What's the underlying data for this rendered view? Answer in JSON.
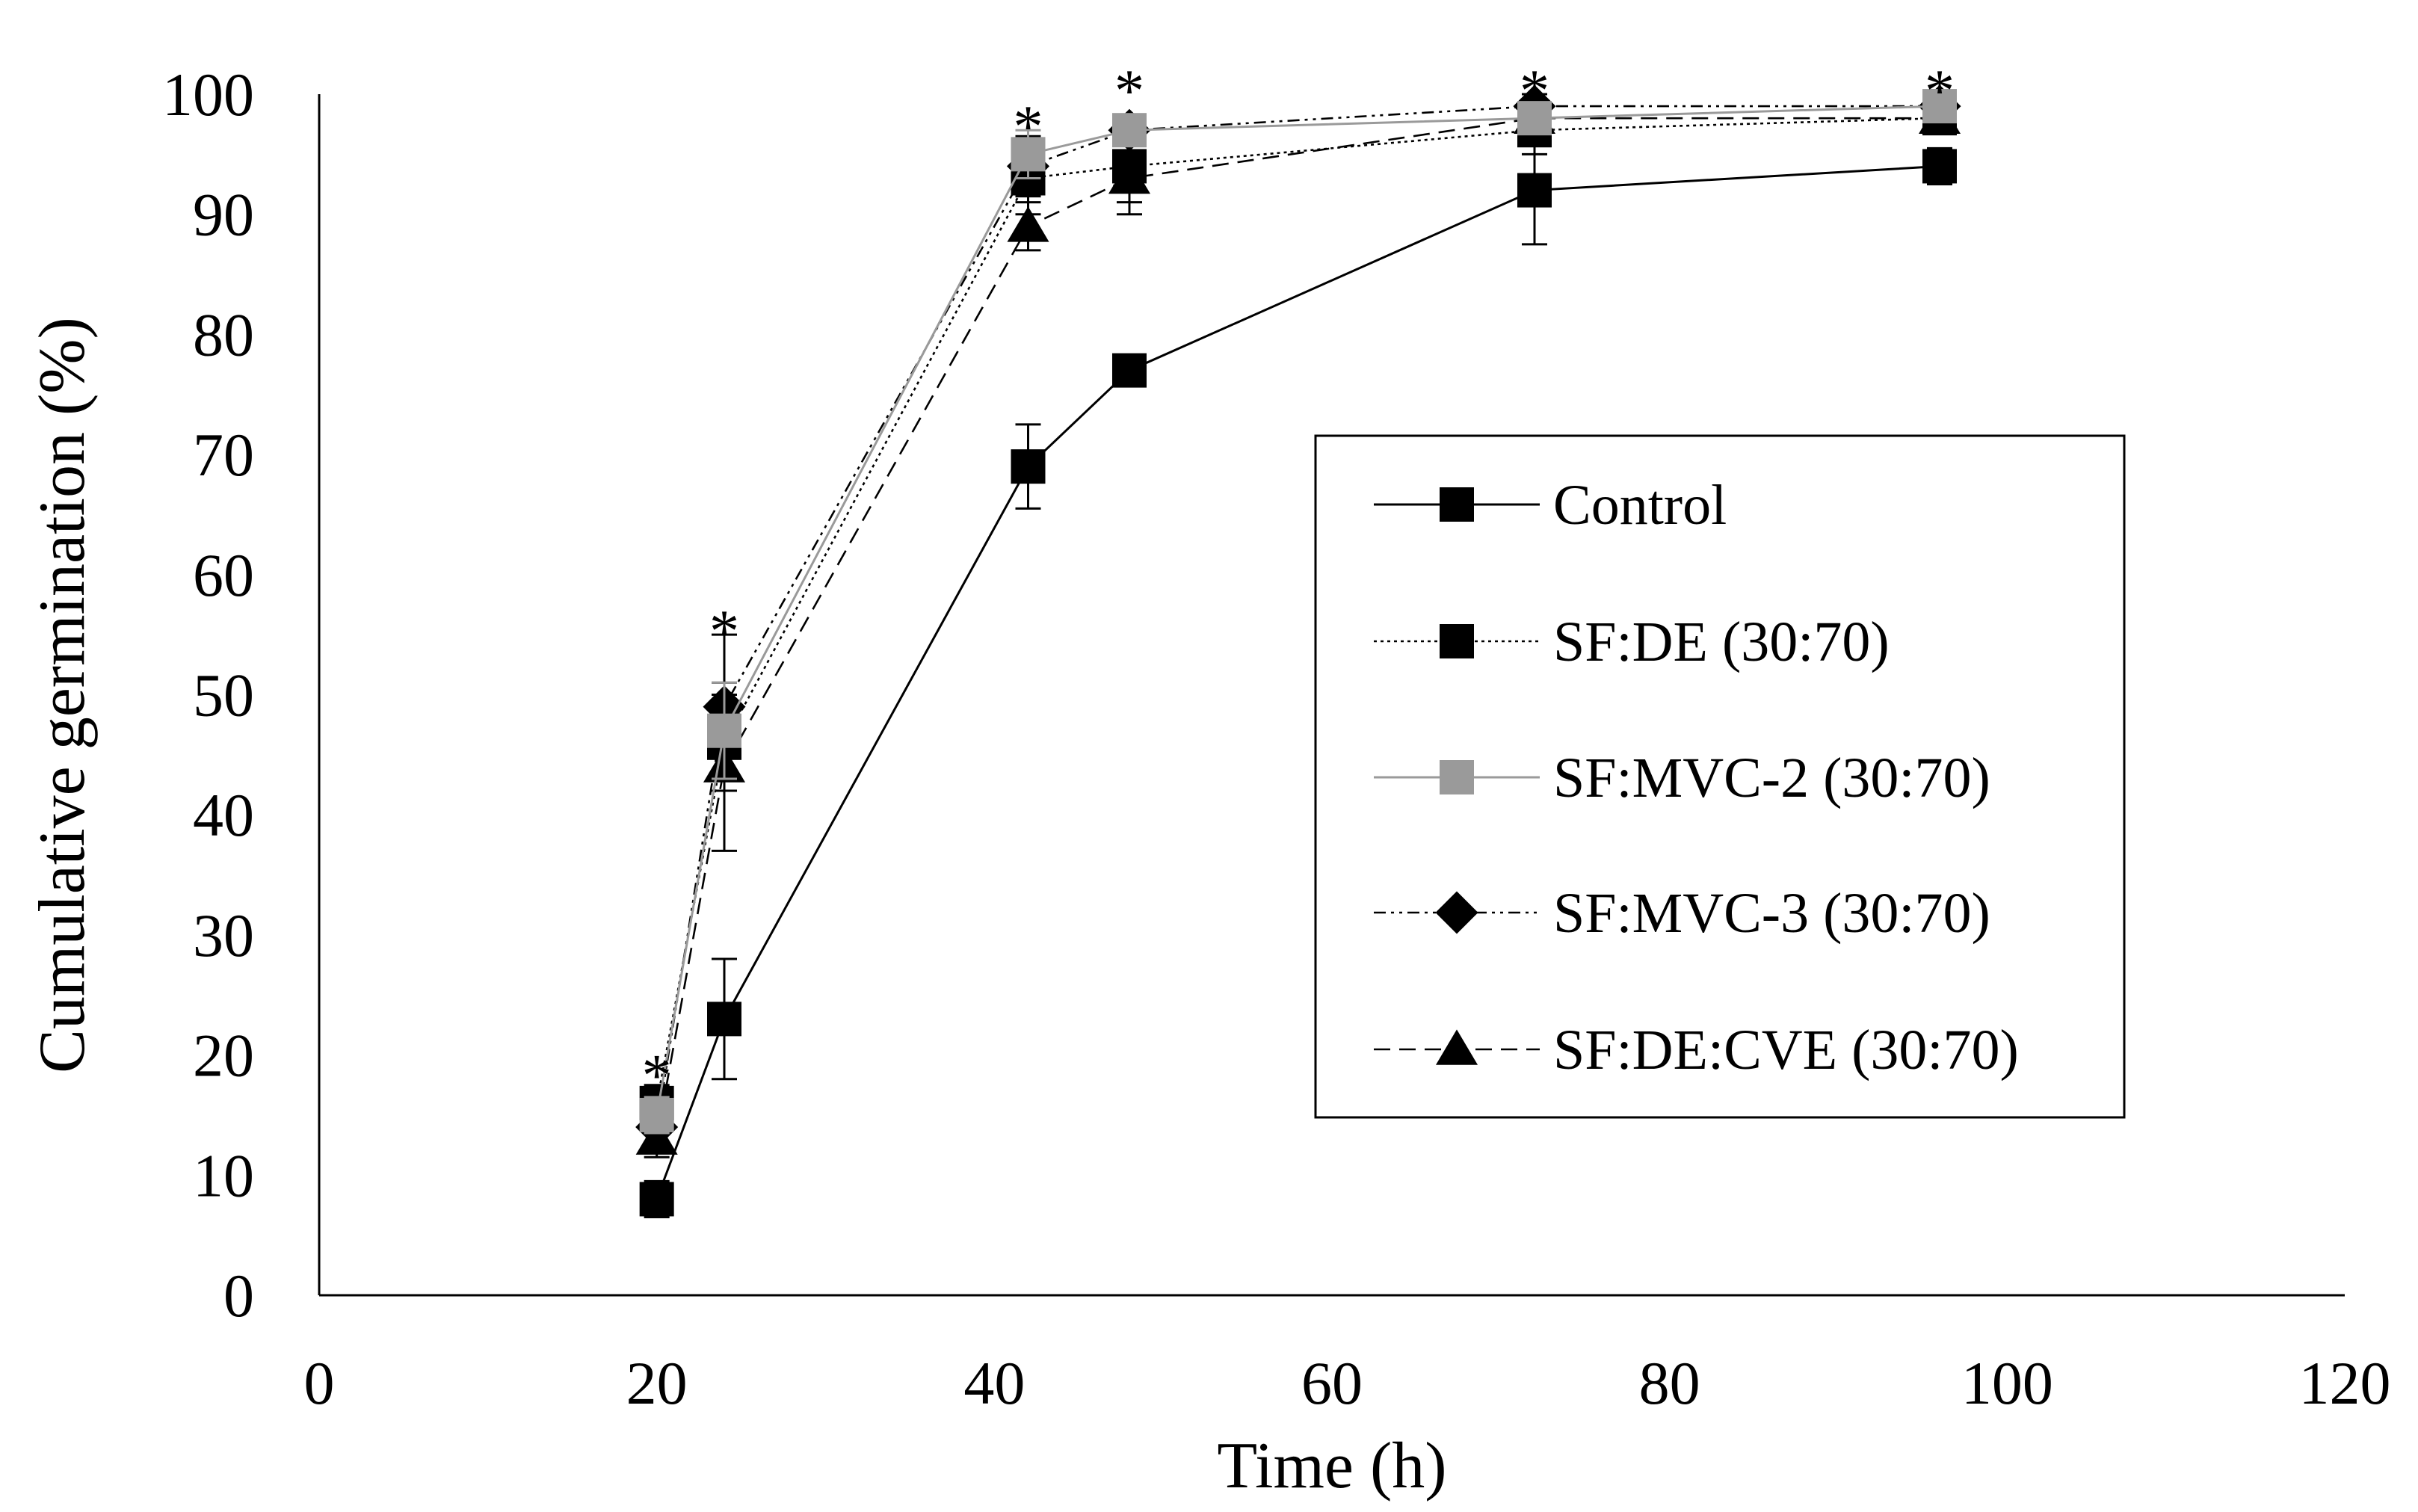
{
  "chart_data": {
    "type": "line",
    "title": "",
    "xlabel": "Time (h)",
    "ylabel": "Cumulative germination (%)",
    "xlim": [
      0,
      120
    ],
    "ylim": [
      0,
      100
    ],
    "xticks": [
      0,
      20,
      40,
      60,
      80,
      100,
      120
    ],
    "yticks": [
      0,
      10,
      20,
      30,
      40,
      50,
      60,
      70,
      80,
      90,
      100
    ],
    "grid": false,
    "legend_position": "center-right",
    "x": [
      20,
      24,
      42,
      48,
      72,
      96
    ],
    "series": [
      {
        "name": "Control",
        "values": [
          8,
          23,
          69,
          77,
          92,
          94
        ],
        "errors": [
          1.5,
          5,
          3.5,
          1,
          4.5,
          1.5
        ],
        "color": "#000000",
        "marker": "square",
        "line": "solid"
      },
      {
        "name": "SF:DE (30:70)",
        "values": [
          16,
          46,
          93,
          94,
          97,
          98
        ],
        "errors": [
          1.5,
          4,
          3,
          3,
          2,
          1
        ],
        "color": "#000000",
        "marker": "square",
        "line": "dotted"
      },
      {
        "name": "SF:MVC-2 (30:70)",
        "values": [
          15,
          47,
          95,
          97,
          98,
          99
        ],
        "errors": [
          1.5,
          4,
          2,
          1,
          1,
          1
        ],
        "color": "#9a9a9a",
        "marker": "square",
        "line": "solid"
      },
      {
        "name": "SF:MVC-3 (30:70)",
        "values": [
          14,
          49,
          94,
          97,
          99,
          99
        ],
        "errors": [
          1.5,
          6,
          2.5,
          1,
          1,
          1
        ],
        "color": "#000000",
        "marker": "diamond",
        "line": "dashdotdot"
      },
      {
        "name": "SF:DE:CVE (30:70)",
        "values": [
          13,
          44,
          89,
          93,
          98,
          98
        ],
        "errors": [
          1.5,
          7,
          2,
          3,
          1,
          1
        ],
        "color": "#000000",
        "marker": "triangle",
        "line": "dashed"
      }
    ],
    "annotations": [
      {
        "text": "*",
        "x": 20,
        "y": 19
      },
      {
        "text": "*",
        "x": 24,
        "y": 56
      },
      {
        "text": "*",
        "x": 42,
        "y": 98
      },
      {
        "text": "*",
        "x": 48,
        "y": 101
      },
      {
        "text": "*",
        "x": 72,
        "y": 101
      },
      {
        "text": "*",
        "x": 96,
        "y": 101
      }
    ]
  }
}
